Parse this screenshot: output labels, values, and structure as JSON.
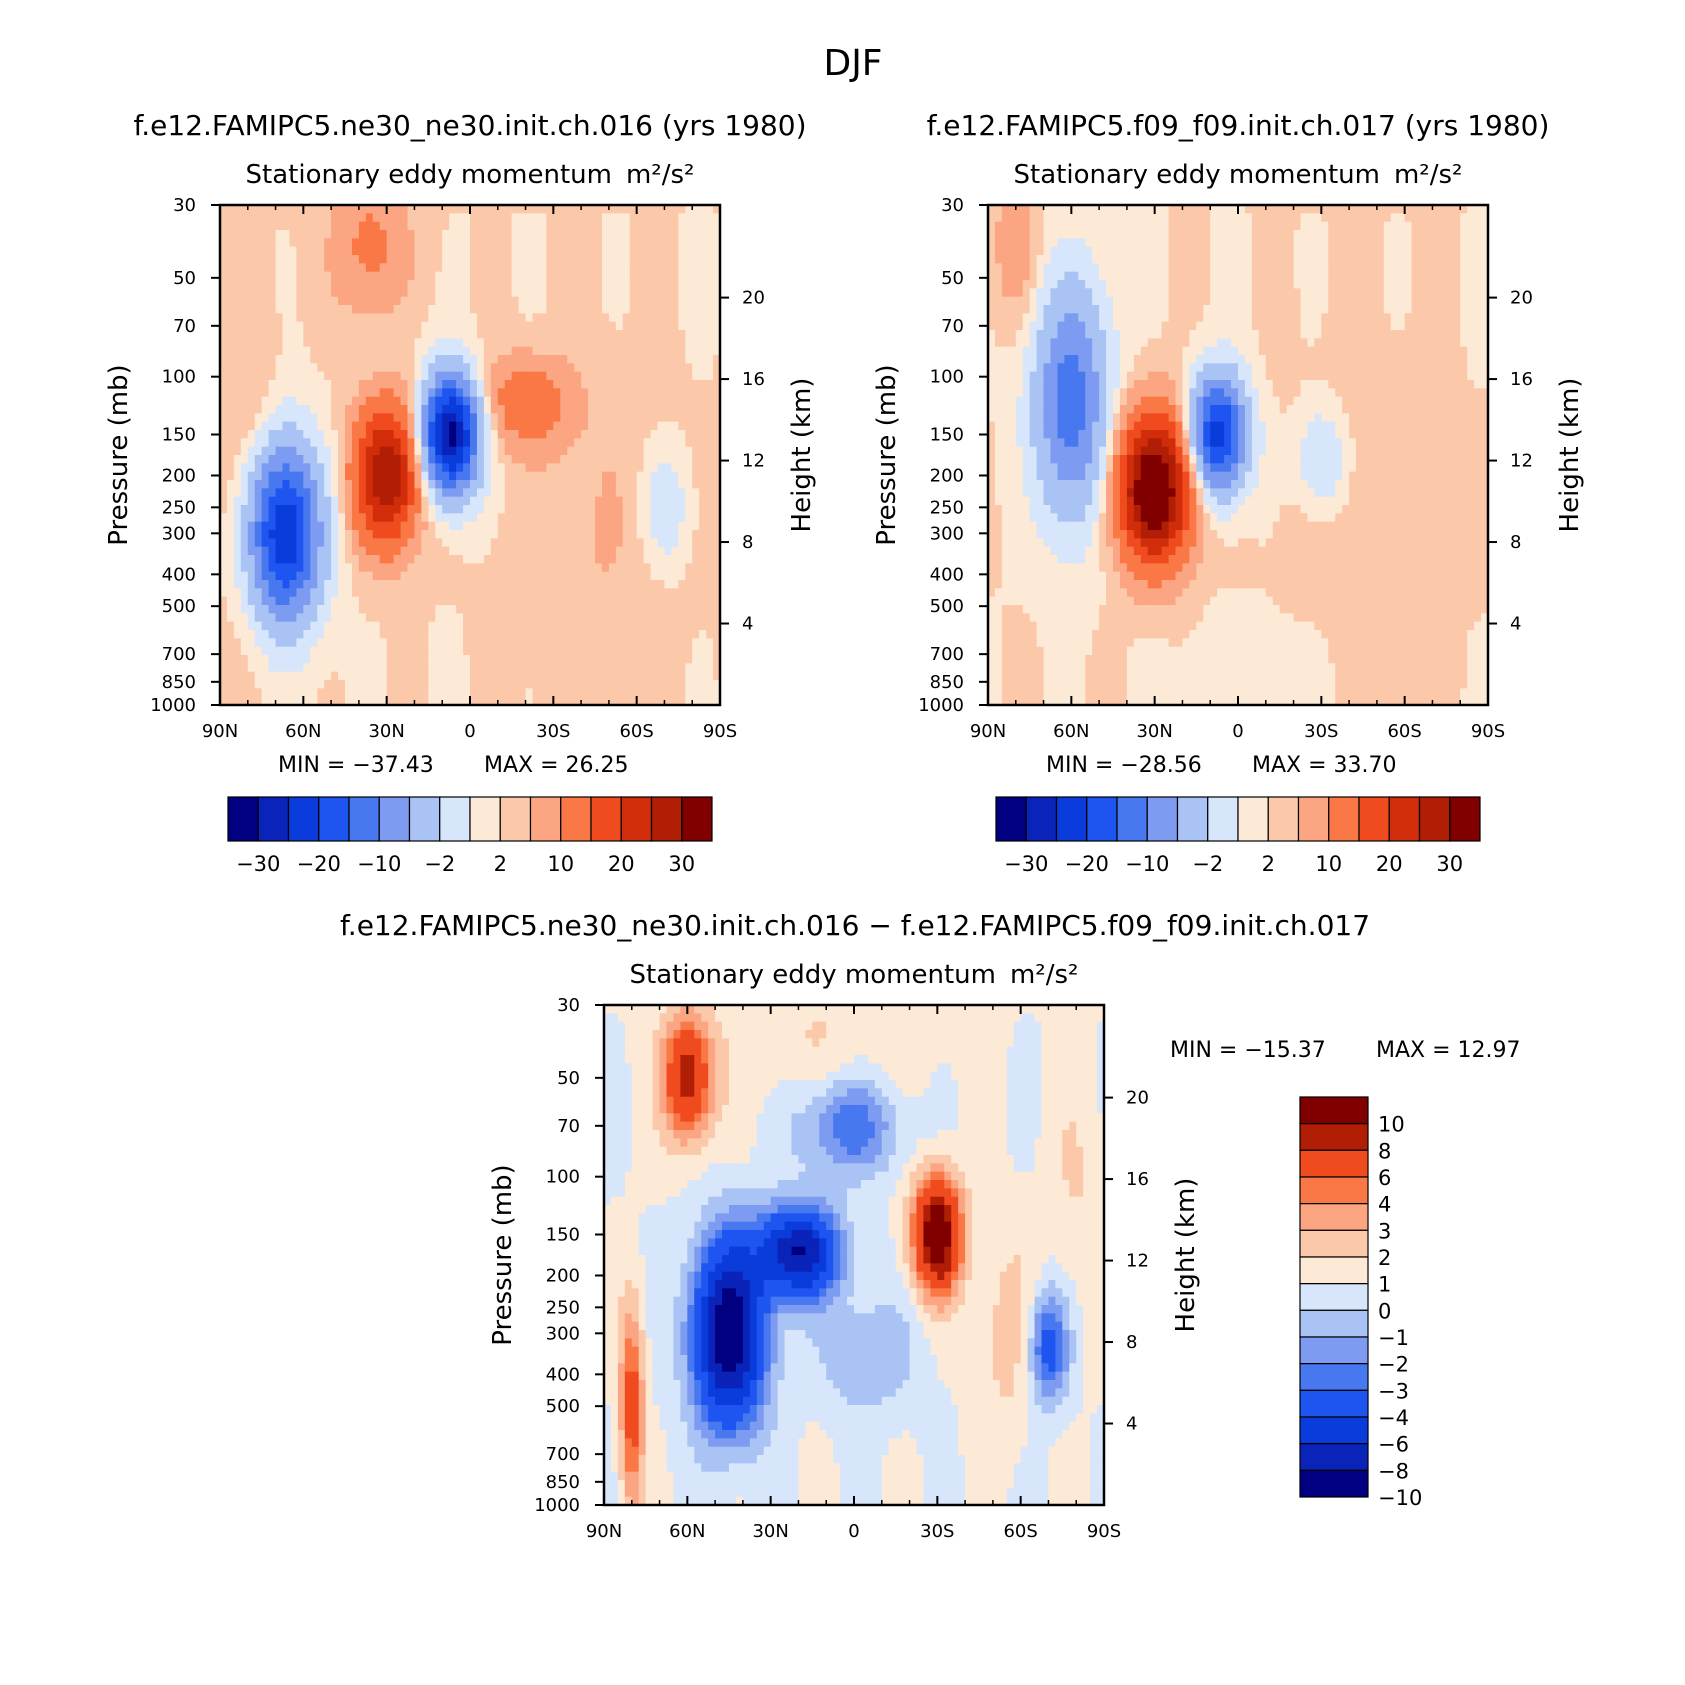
{
  "figure": {
    "title": "DJF"
  },
  "chart_data": [
    {
      "type": "heatmap",
      "panel_title": "f.e12.FAMIPC5.ne30_ne30.init.ch.016 (yrs 1980)",
      "subtitle": "Stationary eddy momentum",
      "units": "m²/s²",
      "xlabel": "",
      "ylabel": "Pressure (mb)",
      "ylabel_right": "Height (km)",
      "x_ticks": [
        "90N",
        "60N",
        "30N",
        "0",
        "30S",
        "60S",
        "90S"
      ],
      "y_ticks": [
        "30",
        "50",
        "70",
        "100",
        "150",
        "200",
        "250",
        "300",
        "400",
        "500",
        "700",
        "850",
        "1000"
      ],
      "y_ticks_right": [
        "20",
        "16",
        "12",
        "8",
        "4"
      ],
      "y_scale": "log pressure",
      "min_text": "MIN = −37.43",
      "max_text": "MAX = 26.25",
      "min": -37.43,
      "max": 26.25,
      "levels": [
        -35,
        -30,
        -25,
        -20,
        -15,
        -10,
        -5,
        -2,
        0,
        2,
        5,
        10,
        15,
        20,
        25,
        30,
        35
      ],
      "colorbar_labels": [
        "−30",
        "−20",
        "−10",
        "−2",
        "2",
        "10",
        "20",
        "30"
      ],
      "colorbar_orientation": "horizontal",
      "features": [
        {
          "lat": 67,
          "p": 300,
          "value": -30,
          "desc": "negative maximum"
        },
        {
          "lat": 30,
          "p": 200,
          "value": 25,
          "desc": "positive maximum"
        },
        {
          "lat": 7,
          "p": 150,
          "value": -37,
          "desc": "strongest minimum"
        },
        {
          "lat": -20,
          "p": 120,
          "value": 8,
          "desc": "weak positive"
        },
        {
          "lat": -70,
          "p": 250,
          "value": -5,
          "desc": "weak negative"
        }
      ]
    },
    {
      "type": "heatmap",
      "panel_title": "f.e12.FAMIPC5.f09_f09.init.ch.017 (yrs 1980)",
      "subtitle": "Stationary eddy momentum",
      "units": "m²/s²",
      "xlabel": "",
      "ylabel": "Pressure (mb)",
      "ylabel_right": "Height (km)",
      "x_ticks": [
        "90N",
        "60N",
        "30N",
        "0",
        "30S",
        "60S",
        "90S"
      ],
      "y_ticks": [
        "30",
        "50",
        "70",
        "100",
        "150",
        "200",
        "250",
        "300",
        "400",
        "500",
        "700",
        "850",
        "1000"
      ],
      "y_ticks_right": [
        "20",
        "16",
        "12",
        "8",
        "4"
      ],
      "y_scale": "log pressure",
      "min_text": "MIN = −28.56",
      "max_text": "MAX = 33.70",
      "min": -28.56,
      "max": 33.7,
      "levels": [
        -35,
        -30,
        -25,
        -20,
        -15,
        -10,
        -5,
        -2,
        0,
        2,
        5,
        10,
        15,
        20,
        25,
        30,
        35
      ],
      "colorbar_labels": [
        "−30",
        "−20",
        "−10",
        "−2",
        "2",
        "10",
        "20",
        "30"
      ],
      "colorbar_orientation": "horizontal",
      "features": [
        {
          "lat": 60,
          "p": 120,
          "value": -18,
          "desc": "negative maximum"
        },
        {
          "lat": 30,
          "p": 220,
          "value": 33,
          "desc": "strongest maximum"
        },
        {
          "lat": 7,
          "p": 150,
          "value": -28,
          "desc": "strongest minimum"
        },
        {
          "lat": -30,
          "p": 180,
          "value": -6,
          "desc": "weak negative"
        }
      ]
    },
    {
      "type": "heatmap",
      "panel_title": "f.e12.FAMIPC5.ne30_ne30.init.ch.016 − f.e12.FAMIPC5.f09_f09.init.ch.017",
      "subtitle": "Stationary eddy momentum",
      "units": "m²/s²",
      "xlabel": "",
      "ylabel": "Pressure (mb)",
      "ylabel_right": "Height (km)",
      "x_ticks": [
        "90N",
        "60N",
        "30N",
        "0",
        "30S",
        "60S",
        "90S"
      ],
      "y_ticks": [
        "30",
        "50",
        "70",
        "100",
        "150",
        "200",
        "250",
        "300",
        "400",
        "500",
        "700",
        "850",
        "1000"
      ],
      "y_ticks_right": [
        "20",
        "16",
        "12",
        "8",
        "4"
      ],
      "y_scale": "log pressure",
      "min_text": "MIN = −15.37",
      "max_text": "MAX = 12.97",
      "min": -15.37,
      "max": 12.97,
      "levels": [
        -10,
        -8,
        -6,
        -4,
        -3,
        -2,
        -1,
        0,
        1,
        2,
        3,
        4,
        6,
        8,
        10
      ],
      "colorbar_labels": [
        "10",
        "8",
        "6",
        "4",
        "3",
        "2",
        "1",
        "0",
        "−1",
        "−2",
        "−3",
        "−4",
        "−6",
        "−8",
        "−10"
      ],
      "colorbar_orientation": "vertical",
      "features": [
        {
          "lat": 60,
          "p": 50,
          "value": 7,
          "desc": "positive near top"
        },
        {
          "lat": 45,
          "p": 300,
          "value": -12,
          "desc": "negative maximum"
        },
        {
          "lat": 20,
          "p": 170,
          "value": -10,
          "desc": "negative"
        },
        {
          "lat": -30,
          "p": 150,
          "value": 10,
          "desc": "positive maximum"
        },
        {
          "lat": 80,
          "p": 500,
          "value": 5,
          "desc": "positive near pole"
        }
      ]
    }
  ]
}
